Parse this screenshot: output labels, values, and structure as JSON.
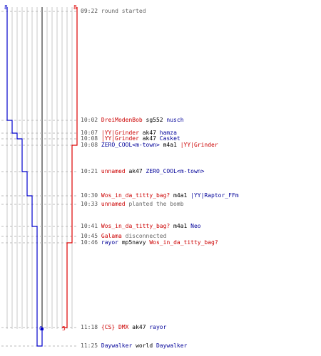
{
  "colors": {
    "t": "#dd0000",
    "ct": "#0000cc",
    "grid": "#c8c8c8",
    "center": "#888888"
  },
  "score": {
    "ct_start": "8",
    "t_start": "8",
    "ct_end": "0",
    "t_end": "5"
  },
  "events": [
    {
      "time": "09:22",
      "parts": [
        {
          "text": "round started",
          "cls": "grey"
        }
      ]
    },
    {
      "time": "10:02",
      "parts": [
        {
          "text": "DreiModenBob",
          "cls": "t"
        },
        {
          "text": " sg552 ",
          "cls": "neutral"
        },
        {
          "text": "nusch",
          "cls": "ct"
        }
      ]
    },
    {
      "time": "10:07",
      "parts": [
        {
          "text": "|YY|Grinder",
          "cls": "t"
        },
        {
          "text": " ak47 ",
          "cls": "neutral"
        },
        {
          "text": "hamza",
          "cls": "ct"
        }
      ]
    },
    {
      "time": "10:08",
      "parts": [
        {
          "text": "|YY|Grinder",
          "cls": "t"
        },
        {
          "text": " ak47 ",
          "cls": "neutral"
        },
        {
          "text": "Casket",
          "cls": "ct"
        }
      ]
    },
    {
      "time": "10:08",
      "parts": [
        {
          "text": "ZERO_COOL<m-town>",
          "cls": "ct"
        },
        {
          "text": " m4a1 ",
          "cls": "neutral"
        },
        {
          "text": "|YY|Grinder",
          "cls": "t"
        }
      ]
    },
    {
      "time": "10:21",
      "parts": [
        {
          "text": "unnamed",
          "cls": "t"
        },
        {
          "text": " ak47 ",
          "cls": "neutral"
        },
        {
          "text": "ZERO_COOL<m-town>",
          "cls": "ct"
        }
      ]
    },
    {
      "time": "10:30",
      "parts": [
        {
          "text": "Wos_in_da_titty_bag?",
          "cls": "t"
        },
        {
          "text": " m4a1 ",
          "cls": "neutral"
        },
        {
          "text": "|YY|Raptor_FFm",
          "cls": "ct"
        }
      ]
    },
    {
      "time": "10:33",
      "parts": [
        {
          "text": "unnamed",
          "cls": "t"
        },
        {
          "text": " planted the bomb",
          "cls": "grey"
        }
      ]
    },
    {
      "time": "10:41",
      "parts": [
        {
          "text": "Wos_in_da_titty_bag?",
          "cls": "t"
        },
        {
          "text": " m4a1 ",
          "cls": "neutral"
        },
        {
          "text": "Neo",
          "cls": "ct"
        }
      ]
    },
    {
      "time": "10:45",
      "parts": [
        {
          "text": "Galama",
          "cls": "t"
        },
        {
          "text": " disconnected",
          "cls": "grey"
        }
      ]
    },
    {
      "time": "10:46",
      "parts": [
        {
          "text": "rayor",
          "cls": "ct"
        },
        {
          "text": " mp5navy ",
          "cls": "neutral"
        },
        {
          "text": "Wos_in_da_titty_bag?",
          "cls": "t"
        }
      ]
    },
    {
      "time": "11:18",
      "parts": [
        {
          "text": "{CS} DMX",
          "cls": "t"
        },
        {
          "text": " ak47 ",
          "cls": "neutral"
        },
        {
          "text": "rayor",
          "cls": "ct"
        }
      ]
    },
    {
      "time": "11:25",
      "parts": [
        {
          "text": "Daywalker",
          "cls": "ct"
        },
        {
          "text": " world ",
          "cls": "neutral"
        },
        {
          "text": "Daywalker",
          "cls": "ct"
        }
      ]
    }
  ]
}
